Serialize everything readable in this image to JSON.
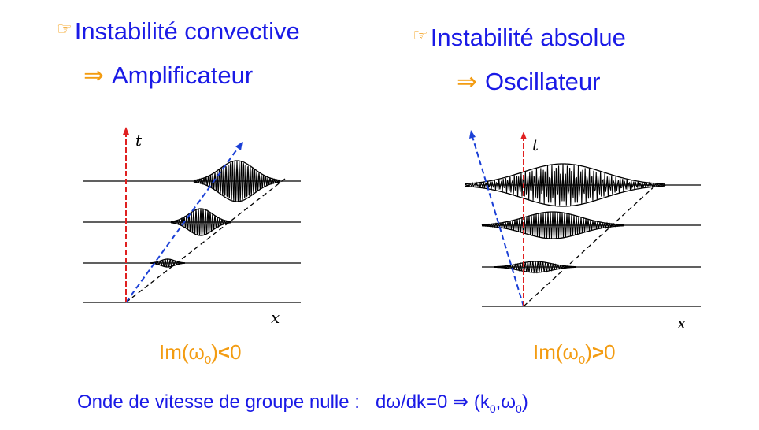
{
  "left": {
    "heading": "Instabilité convective",
    "result_arrow": "⇒",
    "result": "Amplificateur",
    "cond_prefix": "Im(",
    "cond_omega": "ω",
    "cond_sub": "0",
    "cond_close": ")",
    "cond_op": "<",
    "cond_rhs": "0",
    "axis_t": "t",
    "axis_x": "x"
  },
  "right": {
    "heading": "Instabilité absolue",
    "result_arrow": "⇒",
    "result": "Oscillateur",
    "cond_prefix": "Im(",
    "cond_omega": "ω",
    "cond_sub": "0",
    "cond_close": ")",
    "cond_op": ">",
    "cond_rhs": "0",
    "axis_t": "t",
    "axis_x": "x"
  },
  "footer": {
    "text": "Onde de vitesse de groupe nulle :",
    "eq": "dω/dk=0 ⇒ (k",
    "sub0": "0",
    "comma": ",ω",
    "sub1": "0",
    "close": ")"
  },
  "colors": {
    "title": "#1a1ae6",
    "accent": "#f39c12",
    "t_axis": "#e02020",
    "group_velocity": "#1a3fd6"
  },
  "icons": {
    "bullet": "pointing-hand-icon",
    "implies": "double-arrow-icon"
  }
}
